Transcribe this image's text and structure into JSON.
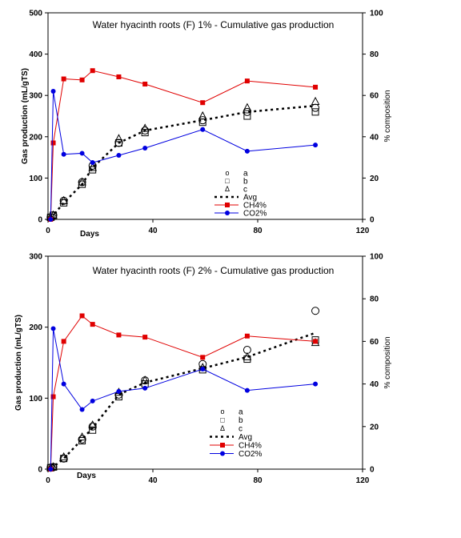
{
  "chart_data": [
    {
      "type": "line",
      "title": "Water hyacinth roots (F) 1% - Cumulative gas production",
      "xlabel": "Days",
      "ylabel": "Gas production (mL/gTS)",
      "y2label": "% composition",
      "xlim": [
        0,
        120
      ],
      "ylim": [
        0,
        500
      ],
      "y2lim": [
        0,
        100
      ],
      "x_ticks": [
        "0",
        "40",
        "80",
        "120"
      ],
      "y_ticks": [
        "0",
        "100",
        "200",
        "300",
        "400",
        "500"
      ],
      "y2_ticks": [
        "0",
        "20",
        "40",
        "60",
        "80",
        "100"
      ],
      "grid": false,
      "legend_position": "center-right",
      "x": [
        1,
        2,
        6,
        13,
        17,
        27,
        37,
        59,
        76,
        102
      ],
      "series": [
        {
          "name": "a",
          "axis": "left",
          "marker": "circle-open",
          "color": "#000000",
          "values": [
            5,
            10,
            45,
            90,
            130,
            185,
            215,
            240,
            260,
            270
          ]
        },
        {
          "name": "b",
          "axis": "left",
          "marker": "square-open",
          "color": "#000000",
          "values": [
            5,
            10,
            40,
            85,
            120,
            185,
            210,
            235,
            250,
            260
          ]
        },
        {
          "name": "c",
          "axis": "left",
          "marker": "triangle-open",
          "color": "#000000",
          "values": [
            5,
            10,
            45,
            90,
            125,
            195,
            220,
            250,
            270,
            285
          ]
        },
        {
          "name": "Avg",
          "axis": "left",
          "line": "dotted",
          "color": "#000000",
          "values": [
            5,
            10,
            40,
            85,
            125,
            185,
            215,
            240,
            260,
            275
          ]
        },
        {
          "name": "CH4%",
          "axis": "right",
          "marker": "square-filled",
          "color": "#e00000",
          "values": [
            0,
            37,
            68,
            67.5,
            72,
            69,
            65.5,
            56.5,
            67,
            64
          ]
        },
        {
          "name": "CO2%",
          "axis": "right",
          "marker": "circle-filled",
          "color": "#0000e0",
          "values": [
            0,
            62,
            31.5,
            32,
            27.5,
            31,
            34.5,
            43.5,
            33,
            36
          ]
        }
      ]
    },
    {
      "type": "line",
      "title": "Water hyacinth roots (F) 2%  - Cumulative gas production",
      "xlabel": "Days",
      "ylabel": "Gas production (mL/gTS)",
      "y2label": "% composition",
      "xlim": [
        0,
        120
      ],
      "ylim": [
        0,
        300
      ],
      "y2lim": [
        0,
        100
      ],
      "x_ticks": [
        "0",
        "40",
        "80",
        "120"
      ],
      "y_ticks": [
        "0",
        "100",
        "200",
        "300"
      ],
      "y2_ticks": [
        "0",
        "20",
        "40",
        "60",
        "80",
        "100"
      ],
      "grid": false,
      "legend_position": "center-right",
      "x": [
        1,
        2,
        6,
        13,
        17,
        27,
        37,
        59,
        76,
        102
      ],
      "series": [
        {
          "name": "a",
          "axis": "left",
          "marker": "circle-open",
          "color": "#000000",
          "values": [
            2,
            3,
            15,
            42,
            60,
            105,
            125,
            148,
            168,
            223
          ]
        },
        {
          "name": "b",
          "axis": "left",
          "marker": "square-open",
          "color": "#000000",
          "values": [
            2,
            3,
            15,
            40,
            55,
            102,
            120,
            140,
            155,
            182
          ]
        },
        {
          "name": "c",
          "axis": "left",
          "marker": "triangle-open",
          "color": "#000000",
          "values": [
            2,
            3,
            17,
            45,
            62,
            108,
            125,
            143,
            158,
            178
          ]
        },
        {
          "name": "Avg",
          "axis": "left",
          "line": "dotted",
          "color": "#000000",
          "values": [
            2,
            3,
            15,
            42,
            58,
            105,
            122,
            142,
            158,
            192
          ]
        },
        {
          "name": "CH4%",
          "axis": "right",
          "marker": "square-filled",
          "color": "#e00000",
          "values": [
            0,
            34,
            60,
            72,
            68,
            63,
            62,
            52.5,
            62.5,
            60
          ]
        },
        {
          "name": "CO2%",
          "axis": "right",
          "marker": "circle-filled",
          "color": "#0000e0",
          "values": [
            0,
            66,
            40,
            28,
            32,
            36.5,
            38,
            47,
            37,
            40
          ]
        }
      ]
    }
  ]
}
